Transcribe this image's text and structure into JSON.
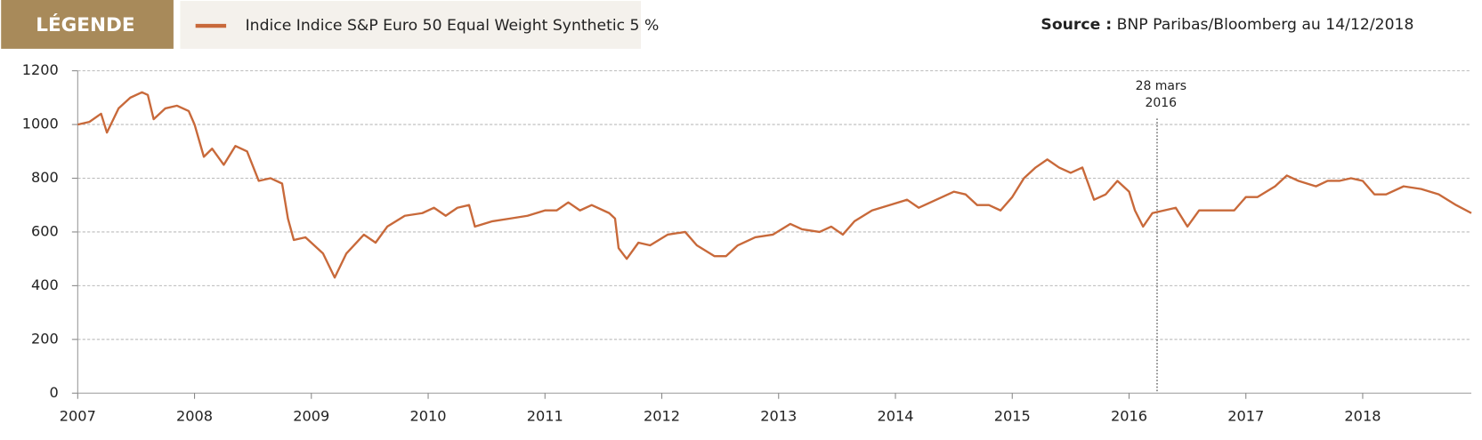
{
  "chart_data": {
    "type": "line",
    "legend_header": "LÉGENDE",
    "source": {
      "label": "Source :",
      "text": "BNP Paribas/Bloomberg au 14/12/2018"
    },
    "x": [
      2007.0,
      2007.1,
      2007.2,
      2007.25,
      2007.35,
      2007.45,
      2007.55,
      2007.6,
      2007.65,
      2007.75,
      2007.85,
      2007.95,
      2008.0,
      2008.08,
      2008.15,
      2008.25,
      2008.35,
      2008.45,
      2008.55,
      2008.65,
      2008.75,
      2008.8,
      2008.85,
      2008.95,
      2009.1,
      2009.2,
      2009.3,
      2009.45,
      2009.55,
      2009.65,
      2009.8,
      2009.95,
      2010.05,
      2010.15,
      2010.25,
      2010.35,
      2010.4,
      2010.55,
      2010.7,
      2010.85,
      2011.0,
      2011.1,
      2011.2,
      2011.3,
      2011.4,
      2011.55,
      2011.6,
      2011.63,
      2011.7,
      2011.8,
      2011.9,
      2012.05,
      2012.2,
      2012.3,
      2012.45,
      2012.55,
      2012.65,
      2012.8,
      2012.95,
      2013.1,
      2013.2,
      2013.35,
      2013.45,
      2013.55,
      2013.65,
      2013.8,
      2013.95,
      2014.1,
      2014.2,
      2014.3,
      2014.4,
      2014.5,
      2014.6,
      2014.7,
      2014.8,
      2014.9,
      2015.0,
      2015.1,
      2015.2,
      2015.3,
      2015.4,
      2015.5,
      2015.6,
      2015.65,
      2015.7,
      2015.8,
      2015.9,
      2016.0,
      2016.05,
      2016.12,
      2016.2,
      2016.3,
      2016.4,
      2016.5,
      2016.6,
      2016.75,
      2016.9,
      2017.0,
      2017.1,
      2017.25,
      2017.35,
      2017.45,
      2017.6,
      2017.7,
      2017.8,
      2017.9,
      2018.0,
      2018.1,
      2018.2,
      2018.35,
      2018.5,
      2018.65,
      2018.8,
      2018.93
    ],
    "series": [
      {
        "name": "Indice Indice S&P Euro 50 Equal Weight Synthetic 5 %",
        "color": "#c8693a",
        "values": [
          1000,
          1010,
          1040,
          970,
          1060,
          1100,
          1120,
          1110,
          1020,
          1060,
          1070,
          1050,
          1000,
          880,
          910,
          850,
          920,
          900,
          790,
          800,
          780,
          650,
          570,
          580,
          520,
          430,
          520,
          590,
          560,
          620,
          660,
          670,
          690,
          660,
          690,
          700,
          620,
          640,
          650,
          660,
          680,
          680,
          710,
          680,
          700,
          670,
          650,
          540,
          500,
          560,
          550,
          590,
          600,
          550,
          510,
          510,
          550,
          580,
          590,
          630,
          610,
          600,
          620,
          590,
          640,
          680,
          700,
          720,
          690,
          710,
          730,
          750,
          740,
          700,
          700,
          680,
          730,
          800,
          840,
          870,
          840,
          820,
          840,
          780,
          720,
          740,
          790,
          750,
          680,
          620,
          670,
          680,
          690,
          620,
          680,
          680,
          680,
          730,
          730,
          770,
          810,
          790,
          770,
          790,
          790,
          800,
          790,
          740,
          740,
          770,
          760,
          740,
          700,
          670
        ]
      }
    ],
    "xlim": [
      2007,
      2018.93
    ],
    "xticks": [
      2007,
      2008,
      2009,
      2010,
      2011,
      2012,
      2013,
      2014,
      2015,
      2016,
      2017,
      2018
    ],
    "ylim": [
      0,
      1200
    ],
    "yticks": [
      0,
      200,
      400,
      600,
      800,
      1000,
      1200
    ],
    "grid": true,
    "annotation": {
      "x": 2016.24,
      "text": [
        "28 mars",
        "2016"
      ]
    }
  }
}
